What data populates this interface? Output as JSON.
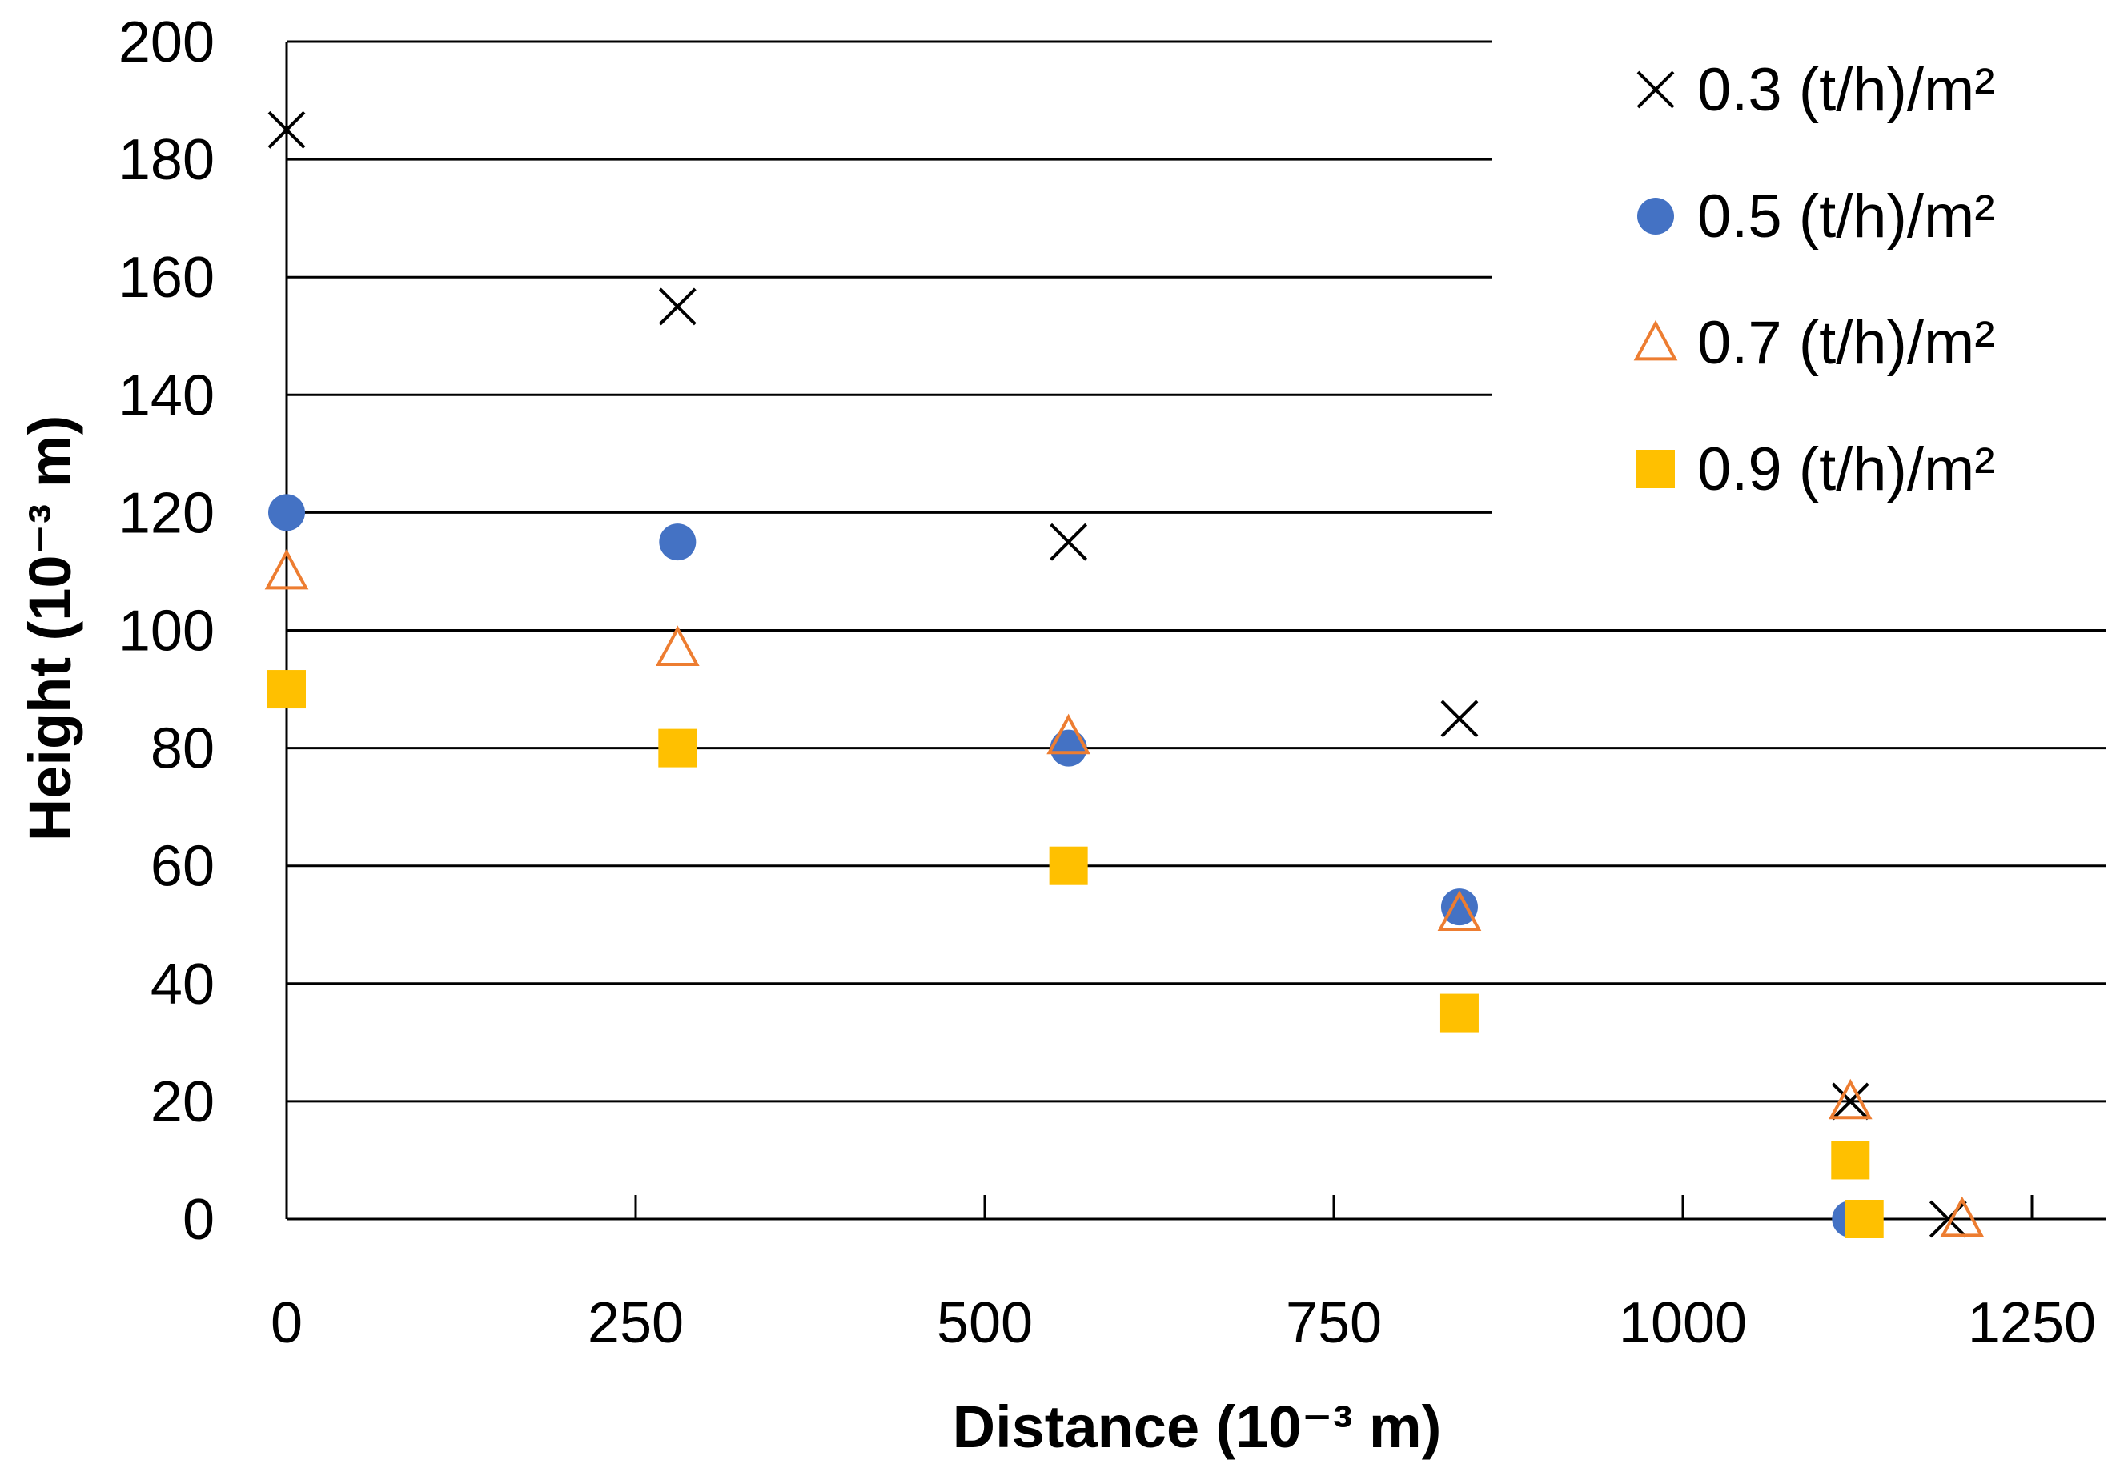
{
  "chart_data": {
    "type": "scatter",
    "title": "",
    "xlabel": "Distance (10⁻³ m)",
    "ylabel": "Height (10⁻³ m)",
    "xlim": [
      0,
      1300
    ],
    "ylim": [
      0,
      200
    ],
    "x_ticks": [
      0,
      250,
      500,
      750,
      1000,
      1250
    ],
    "x_tick_labels": [
      "0",
      "250",
      "500",
      "750",
      "1000",
      "1250"
    ],
    "y_ticks": [
      0,
      20,
      40,
      60,
      80,
      100,
      120,
      140,
      160,
      180,
      200
    ],
    "y_tick_labels": [
      "0",
      "20",
      "40",
      "60",
      "80",
      "100",
      "120",
      "140",
      "160",
      "180",
      "200"
    ],
    "grid": "horizontal",
    "legend_position": "top-right",
    "series": [
      {
        "name": "0.3 (t/h)/m²",
        "marker": "x",
        "color": "#000000",
        "points": [
          [
            0,
            185
          ],
          [
            280,
            155
          ],
          [
            560,
            115
          ],
          [
            840,
            85
          ],
          [
            1120,
            20
          ],
          [
            1190,
            0
          ]
        ]
      },
      {
        "name": "0.5 (t/h)/m²",
        "marker": "circle",
        "color": "#4472C4",
        "points": [
          [
            0,
            120
          ],
          [
            280,
            115
          ],
          [
            560,
            80
          ],
          [
            840,
            53
          ],
          [
            1120,
            0
          ]
        ]
      },
      {
        "name": "0.7 (t/h)/m²",
        "marker": "triangle",
        "color": "#ED7D31",
        "points": [
          [
            0,
            110
          ],
          [
            280,
            97
          ],
          [
            560,
            82
          ],
          [
            840,
            52
          ],
          [
            1120,
            20
          ],
          [
            1200,
            0
          ]
        ]
      },
      {
        "name": "0.9 (t/h)/m²",
        "marker": "square",
        "color": "#FFC000",
        "points": [
          [
            0,
            90
          ],
          [
            280,
            80
          ],
          [
            560,
            60
          ],
          [
            840,
            35
          ],
          [
            1120,
            10
          ],
          [
            1130,
            0
          ]
        ]
      }
    ]
  }
}
